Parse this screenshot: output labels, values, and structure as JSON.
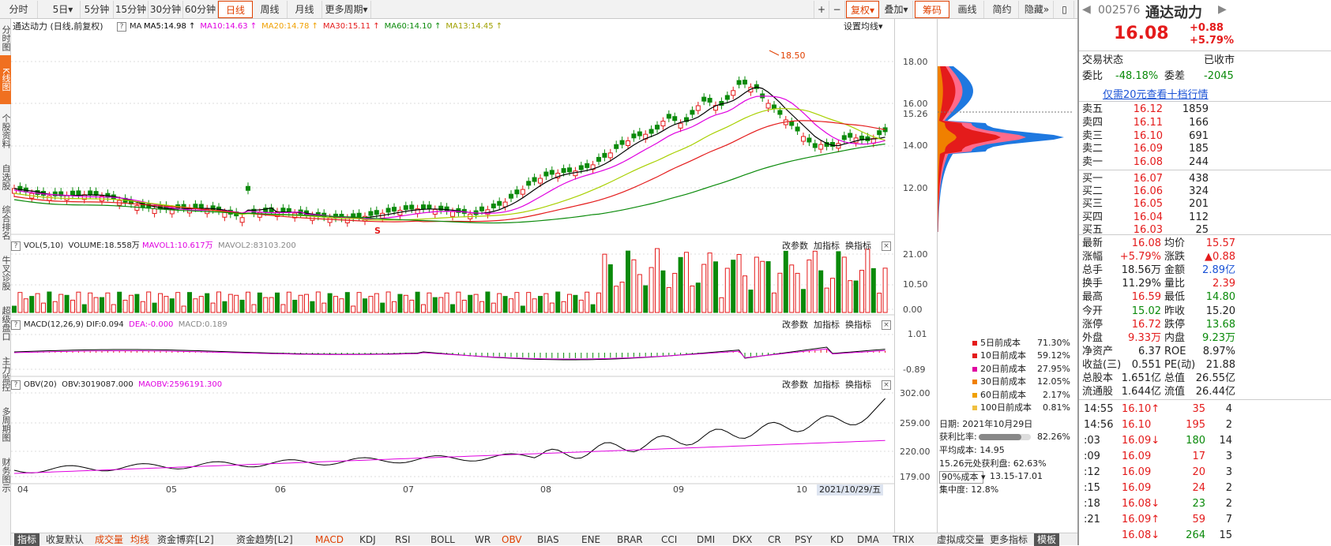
{
  "toolbar": {
    "periods": [
      "分时",
      "5日",
      "5分钟",
      "15分钟",
      "30分钟",
      "60分钟",
      "日线",
      "周线",
      "月线",
      "更多周期"
    ],
    "active_period": "日线",
    "right_buttons": [
      "复权",
      "叠加",
      "筹码",
      "画线",
      "简约",
      "隐藏"
    ],
    "right_icons": [
      "+",
      "−"
    ],
    "icons": [
      "plus-icon",
      "minus-icon",
      "chevron-right-icon",
      "sidebar-icon"
    ]
  },
  "left_strip": {
    "items": [
      "分时图",
      "K线图",
      "个股资料",
      "自选股",
      "综合排名",
      "牛叉诊股",
      "超级盘口",
      "主力监控",
      "多周期图",
      "财务图示"
    ]
  },
  "kline": {
    "title": "通达动力 (日线,前复权)",
    "ma_labels": [
      {
        "text": "MA5:14.98",
        "color": "#000000"
      },
      {
        "text": "MA10:14.63",
        "color": "#e000e0"
      },
      {
        "text": "MA20:14.78",
        "color": "#f0a000"
      },
      {
        "text": "MA30:15.11",
        "color": "#e41b1b"
      },
      {
        "text": "MA60:14.10",
        "color": "#0a8a0a"
      },
      {
        "text": "MA13:14.45",
        "color": "#a0a000"
      }
    ],
    "settings_label": "设置均线",
    "y_ticks": [
      "18.00",
      "16.00",
      "15.26",
      "14.00",
      "12.00"
    ],
    "high_label": "18.50",
    "marker": "S"
  },
  "vol": {
    "label": "VOL(5,10)",
    "volume": "VOLUME:18.558万",
    "mavol1": "MAVOL1:10.617万",
    "mavol2": "MAVOL2:83103.200",
    "y_ticks": [
      "21.00",
      "10.50",
      "0.00"
    ]
  },
  "macd": {
    "label": "MACD(12,26,9)",
    "dif": "DIF:0.094",
    "dea": "DEA:-0.000",
    "macd": "MACD:0.189",
    "y_ticks": [
      "1.01",
      "-0.89"
    ]
  },
  "obv": {
    "label": "OBV(20)",
    "obv": "OBV:3019087.000",
    "maobv": "MAOBV:2596191.300",
    "y_ticks": [
      "302.00",
      "259.00",
      "220.00",
      "179.00"
    ]
  },
  "panel_buttons": [
    "改参数",
    "加指标",
    "换指标"
  ],
  "x_axis": {
    "labels": [
      "04",
      "05",
      "06",
      "07",
      "08",
      "09",
      "10"
    ],
    "current_date": "2021/10/29/五"
  },
  "distribution": {
    "legend": [
      {
        "label": "5日前成本",
        "value": "71.30%",
        "color": "#e41b1b"
      },
      {
        "label": "10日前成本",
        "value": "59.12%",
        "color": "#e41b1b"
      },
      {
        "label": "20日前成本",
        "value": "27.95%",
        "color": "#e000a0"
      },
      {
        "label": "30日前成本",
        "value": "12.05%",
        "color": "#f08000"
      },
      {
        "label": "60日前成本",
        "value": "2.17%",
        "color": "#f0a000"
      },
      {
        "label": "100日前成本",
        "value": "0.81%",
        "color": "#f0c040"
      }
    ],
    "date": "日期: 2021年10月29日",
    "profit_ratio_label": "获利比率:",
    "profit_ratio": "82.26%",
    "profit_ratio_fraction": 0.8226,
    "avg_cost": "平均成本: 14.95",
    "price_profit": "15.26元处获利盘: 62.63%",
    "cost_select": "90%成本",
    "cost_range": "13.15-17.01",
    "concentration": "集中度: 12.8%"
  },
  "quote": {
    "code": "002576",
    "name": "通达动力",
    "price": "16.08",
    "change": "+0.88",
    "pct": "+5.79%",
    "status_label": "交易状态",
    "status": "已收市",
    "weibi_label": "委比",
    "weibi": "-48.18%",
    "weicha_label": "委差",
    "weicha": "-2045",
    "link": "仅需20元查看十档行情",
    "asks": [
      {
        "label": "卖五",
        "price": "16.12",
        "vol": "1859"
      },
      {
        "label": "卖四",
        "price": "16.11",
        "vol": "166"
      },
      {
        "label": "卖三",
        "price": "16.10",
        "vol": "691"
      },
      {
        "label": "卖二",
        "price": "16.09",
        "vol": "185"
      },
      {
        "label": "卖一",
        "price": "16.08",
        "vol": "244"
      }
    ],
    "bids": [
      {
        "label": "买一",
        "price": "16.07",
        "vol": "438"
      },
      {
        "label": "买二",
        "price": "16.06",
        "vol": "324"
      },
      {
        "label": "买三",
        "price": "16.05",
        "vol": "201"
      },
      {
        "label": "买四",
        "price": "16.04",
        "vol": "112"
      },
      {
        "label": "买五",
        "price": "16.03",
        "vol": "25"
      }
    ],
    "stats": [
      [
        {
          "l": "最新",
          "v": "16.08",
          "c": "red"
        },
        {
          "l": "均价",
          "v": "15.57",
          "c": "red"
        }
      ],
      [
        {
          "l": "涨幅",
          "v": "+5.79%",
          "c": "red"
        },
        {
          "l": "涨跌",
          "v": "▲0.88",
          "c": "red"
        }
      ],
      [
        {
          "l": "总手",
          "v": "18.56万",
          "c": ""
        },
        {
          "l": "金额",
          "v": "2.89亿",
          "c": "blue"
        }
      ],
      [
        {
          "l": "换手",
          "v": "11.29%",
          "c": ""
        },
        {
          "l": "量比",
          "v": "2.39",
          "c": "red"
        }
      ],
      [
        {
          "l": "最高",
          "v": "16.59",
          "c": "red"
        },
        {
          "l": "最低",
          "v": "14.80",
          "c": "green"
        }
      ],
      [
        {
          "l": "今开",
          "v": "15.02",
          "c": "green"
        },
        {
          "l": "昨收",
          "v": "15.20",
          "c": ""
        }
      ],
      [
        {
          "l": "涨停",
          "v": "16.72",
          "c": "red"
        },
        {
          "l": "跌停",
          "v": "13.68",
          "c": "green"
        }
      ],
      [
        {
          "l": "外盘",
          "v": "9.33万",
          "c": "red"
        },
        {
          "l": "内盘",
          "v": "9.23万",
          "c": "green"
        }
      ],
      [
        {
          "l": "净资产",
          "v": "6.37",
          "c": ""
        },
        {
          "l": "ROE",
          "v": "8.97%",
          "c": ""
        }
      ],
      [
        {
          "l": "收益(三)",
          "v": "0.551",
          "c": ""
        },
        {
          "l": "PE(动)",
          "v": "21.88",
          "c": ""
        }
      ],
      [
        {
          "l": "总股本",
          "v": "1.651亿",
          "c": ""
        },
        {
          "l": "总值",
          "v": "26.55亿",
          "c": ""
        }
      ],
      [
        {
          "l": "流通股",
          "v": "1.644亿",
          "c": ""
        },
        {
          "l": "流值",
          "v": "26.44亿",
          "c": ""
        }
      ]
    ],
    "ticks": [
      {
        "t": "14:55",
        "p": "16.10",
        "arrow": "↑",
        "v": "35",
        "n": "4",
        "c": "red"
      },
      {
        "t": "14:56",
        "p": "16.10",
        "arrow": "",
        "v": "195",
        "n": "2",
        "c": "red"
      },
      {
        "t": ":03",
        "p": "16.09",
        "arrow": "↓",
        "v": "180",
        "n": "14",
        "c": "green"
      },
      {
        "t": ":09",
        "p": "16.09",
        "arrow": "",
        "v": "17",
        "n": "3",
        "c": "red"
      },
      {
        "t": ":12",
        "p": "16.09",
        "arrow": "",
        "v": "20",
        "n": "3",
        "c": "red"
      },
      {
        "t": ":15",
        "p": "16.09",
        "arrow": "",
        "v": "24",
        "n": "2",
        "c": "red"
      },
      {
        "t": ":18",
        "p": "16.08",
        "arrow": "↓",
        "v": "23",
        "n": "2",
        "c": "green"
      },
      {
        "t": ":21",
        "p": "16.09",
        "arrow": "↑",
        "v": "59",
        "n": "7",
        "c": "red"
      },
      {
        "t": "",
        "p": "16.08",
        "arrow": "↓",
        "v": "264",
        "n": "15",
        "c": "green"
      }
    ]
  },
  "bottom_tabs": [
    "指标",
    "成交量",
    "均线",
    "资金博弈[L2]",
    "资金趋势[L2]",
    "MACD",
    "KDJ",
    "RSI",
    "BOLL",
    "WR",
    "OBV",
    "BIAS",
    "ENE",
    "BRAR",
    "CCI",
    "DMI",
    "DKX",
    "CR",
    "PSY",
    "KD",
    "DMA",
    "TRIX",
    "虚拟成交量",
    "更多指标",
    "模板"
  ],
  "bottom_first": "指标",
  "bottom_second": "收复默认"
}
